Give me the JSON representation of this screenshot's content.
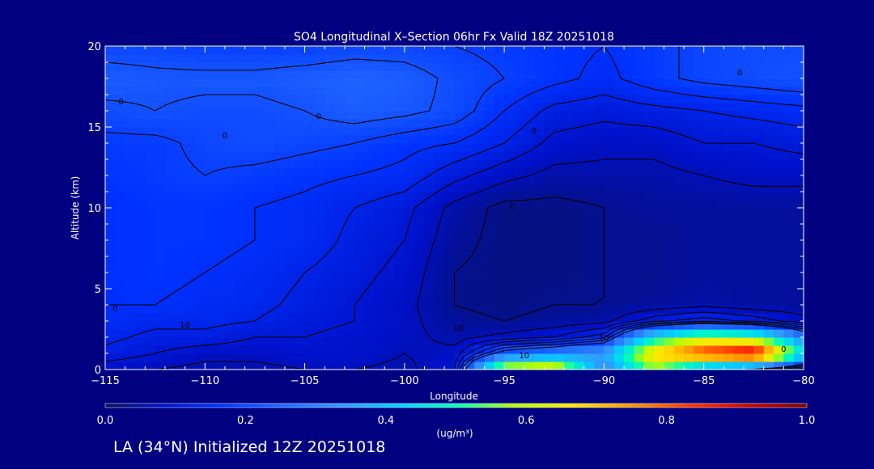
{
  "colors": {
    "background": "#000080",
    "text": "#ffffff",
    "contour": "#000000",
    "scale": [
      "#08105a",
      "#0010c8",
      "#0032ff",
      "#1e64ff",
      "#3296ff",
      "#00d2ff",
      "#00ffb4",
      "#b4ff00",
      "#ffe600",
      "#ff9600",
      "#ff3200",
      "#c80000",
      "#780000"
    ]
  },
  "chart_data": {
    "type": "heatmap",
    "title": "SO4 Longitudinal X–Section 06hr  Fx Valid 18Z 20251018",
    "xlabel": "Longitude",
    "ylabel": "Altitude (km)",
    "xlim": [
      -115,
      -80
    ],
    "ylim": [
      0,
      20
    ],
    "xticks": [
      -115,
      -110,
      -105,
      -100,
      -95,
      -90,
      -85,
      -80
    ],
    "xtick_labels": [
      "−115",
      "−110",
      "−105",
      "−100",
      "−95",
      "−90",
      "−85",
      "−80"
    ],
    "yticks": [
      0,
      5,
      10,
      15,
      20
    ],
    "ytick_labels": [
      "0",
      "5",
      "10",
      "15",
      "20"
    ],
    "colorbar": {
      "min": 0.0,
      "max": 1.0,
      "ticks": [
        0.0,
        0.2,
        0.4,
        0.6,
        0.8,
        1.0
      ],
      "tick_labels": [
        "0.0",
        "0.2",
        "0.4",
        "0.6",
        "0.8",
        "1.0"
      ],
      "units": "(ug/m³)"
    },
    "field": {
      "x": [
        -115,
        -112.5,
        -110,
        -107.5,
        -105,
        -102.5,
        -100,
        -97.5,
        -95,
        -92.5,
        -90,
        -87.5,
        -85,
        -82.5,
        -80
      ],
      "y": [
        0,
        1,
        2,
        3,
        4,
        6,
        8,
        10,
        12,
        14,
        16,
        18,
        20
      ],
      "z": [
        [
          0.08,
          0.07,
          0.06,
          0.06,
          0.07,
          0.07,
          0.06,
          0.1,
          0.65,
          0.7,
          0.3,
          0.55,
          0.3,
          0.2,
          0.1
        ],
        [
          0.12,
          0.1,
          0.08,
          0.08,
          0.09,
          0.09,
          0.07,
          0.08,
          0.25,
          0.3,
          0.35,
          0.7,
          0.85,
          0.95,
          0.45
        ],
        [
          0.14,
          0.12,
          0.12,
          0.1,
          0.1,
          0.09,
          0.08,
          0.06,
          0.08,
          0.1,
          0.15,
          0.45,
          0.6,
          0.55,
          0.3
        ],
        [
          0.15,
          0.14,
          0.14,
          0.13,
          0.11,
          0.1,
          0.08,
          0.05,
          0.04,
          0.05,
          0.06,
          0.12,
          0.15,
          0.12,
          0.08
        ],
        [
          0.16,
          0.16,
          0.15,
          0.14,
          0.12,
          0.1,
          0.08,
          0.04,
          0.03,
          0.04,
          0.04,
          0.05,
          0.06,
          0.05,
          0.05
        ],
        [
          0.16,
          0.17,
          0.16,
          0.15,
          0.13,
          0.11,
          0.09,
          0.04,
          0.03,
          0.03,
          0.04,
          0.04,
          0.05,
          0.05,
          0.05
        ],
        [
          0.16,
          0.17,
          0.17,
          0.16,
          0.15,
          0.12,
          0.1,
          0.05,
          0.03,
          0.03,
          0.04,
          0.04,
          0.05,
          0.05,
          0.05
        ],
        [
          0.16,
          0.17,
          0.17,
          0.16,
          0.15,
          0.13,
          0.11,
          0.06,
          0.03,
          0.03,
          0.04,
          0.05,
          0.05,
          0.05,
          0.05
        ],
        [
          0.17,
          0.18,
          0.19,
          0.18,
          0.17,
          0.16,
          0.15,
          0.11,
          0.08,
          0.06,
          0.06,
          0.06,
          0.07,
          0.08,
          0.08
        ],
        [
          0.18,
          0.18,
          0.2,
          0.21,
          0.2,
          0.19,
          0.17,
          0.16,
          0.13,
          0.09,
          0.08,
          0.08,
          0.1,
          0.1,
          0.11
        ],
        [
          0.21,
          0.22,
          0.21,
          0.21,
          0.22,
          0.24,
          0.23,
          0.21,
          0.16,
          0.12,
          0.11,
          0.12,
          0.13,
          0.14,
          0.15
        ],
        [
          0.24,
          0.23,
          0.23,
          0.23,
          0.24,
          0.25,
          0.24,
          0.21,
          0.19,
          0.17,
          0.15,
          0.18,
          0.2,
          0.21,
          0.22
        ],
        [
          0.2,
          0.2,
          0.19,
          0.19,
          0.19,
          0.2,
          0.2,
          0.19,
          0.18,
          0.17,
          0.16,
          0.18,
          0.2,
          0.21,
          0.21
        ]
      ]
    },
    "contour_labels": [
      {
        "text": "0",
        "x": -114.2,
        "y": 16.4
      },
      {
        "text": "0",
        "x": -109,
        "y": 14.3
      },
      {
        "text": "0",
        "x": -104.3,
        "y": 15.5
      },
      {
        "text": "0",
        "x": -83.2,
        "y": 18.2
      },
      {
        "text": "0",
        "x": -93.5,
        "y": 14.6
      },
      {
        "text": "0",
        "x": -94.6,
        "y": 9.9
      },
      {
        "text": "0",
        "x": -81,
        "y": 1.1
      },
      {
        "text": "0",
        "x": -114.5,
        "y": 3.6
      },
      {
        "text": "10",
        "x": -111,
        "y": 2.6
      },
      {
        "text": "10",
        "x": -97.3,
        "y": 2.4
      },
      {
        "text": "10",
        "x": -90,
        "y": 1.8
      },
      {
        "text": "10",
        "x": -94,
        "y": 0.7
      }
    ]
  },
  "footer": {
    "caption": "LA (34°N) Initialized 12Z 20251018"
  }
}
